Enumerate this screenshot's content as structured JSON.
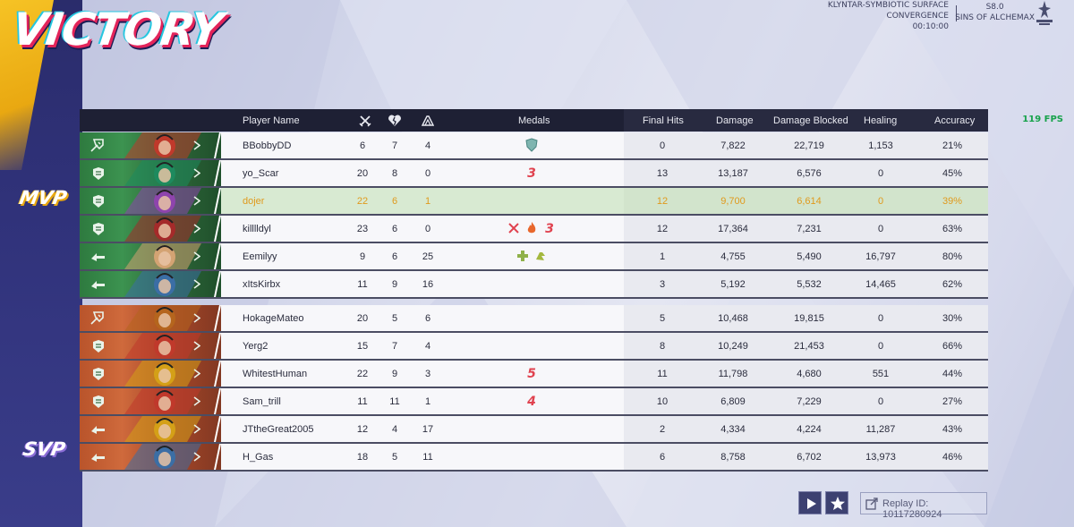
{
  "banner": {
    "title": "VICTORY"
  },
  "season": {
    "map_name": "KLYNTAR-SYMBIOTIC SURFACE",
    "mode": "CONVERGENCE",
    "time": "00:10:00",
    "season_code": "S8.0",
    "season_name": "SINS OF ALCHEMAX"
  },
  "fps": "119 FPS",
  "awards": {
    "mvp": "MVP",
    "svp": "SVP"
  },
  "columns": {
    "player_name": "Player Name",
    "medals": "Medals",
    "final_hits": "Final Hits",
    "damage": "Damage",
    "damage_blocked": "Damage Blocked",
    "healing": "Healing",
    "accuracy": "Accuracy",
    "kills_icon": "crossed-swords-icon",
    "deaths_icon": "broken-heart-icon",
    "assists_icon": "assist-hands-icon"
  },
  "team_a": [
    {
      "name": "BBobbyDD",
      "role": "vanguard",
      "kills": "6",
      "deaths": "7",
      "assists": "4",
      "medals": [
        "shield-medal-icon"
      ],
      "final_hits": "0",
      "damage": "7,822",
      "damage_blocked": "22,719",
      "healing": "1,153",
      "accuracy": "21%"
    },
    {
      "name": "yo_Scar",
      "role": "duelist",
      "kills": "20",
      "deaths": "8",
      "assists": "0",
      "medals": [
        "streak-3-medal-icon"
      ],
      "final_hits": "13",
      "damage": "13,187",
      "damage_blocked": "6,576",
      "healing": "0",
      "accuracy": "45%"
    },
    {
      "name": "dojer",
      "role": "duelist",
      "kills": "22",
      "deaths": "6",
      "assists": "1",
      "medals": [],
      "final_hits": "12",
      "damage": "9,700",
      "damage_blocked": "6,614",
      "healing": "0",
      "accuracy": "39%"
    },
    {
      "name": "killlldyl",
      "role": "duelist",
      "kills": "23",
      "deaths": "6",
      "assists": "0",
      "medals": [
        "swords-medal-icon",
        "fire-medal-icon",
        "streak-3-medal-icon"
      ],
      "final_hits": "12",
      "damage": "17,364",
      "damage_blocked": "7,231",
      "healing": "0",
      "accuracy": "63%"
    },
    {
      "name": "Eemilyy",
      "role": "strategist",
      "kills": "9",
      "deaths": "6",
      "assists": "25",
      "medals": [
        "heal-cross-medal-icon",
        "assist-medal-icon"
      ],
      "final_hits": "1",
      "damage": "4,755",
      "damage_blocked": "5,490",
      "healing": "16,797",
      "accuracy": "80%"
    },
    {
      "name": "xItsKirbx",
      "role": "strategist",
      "kills": "11",
      "deaths": "9",
      "assists": "16",
      "medals": [],
      "final_hits": "3",
      "damage": "5,192",
      "damage_blocked": "5,532",
      "healing": "14,465",
      "accuracy": "62%"
    }
  ],
  "team_b": [
    {
      "name": "HokageMateo",
      "role": "vanguard",
      "kills": "20",
      "deaths": "5",
      "assists": "6",
      "medals": [],
      "final_hits": "5",
      "damage": "10,468",
      "damage_blocked": "19,815",
      "healing": "0",
      "accuracy": "30%"
    },
    {
      "name": "Yerg2",
      "role": "duelist",
      "kills": "15",
      "deaths": "7",
      "assists": "4",
      "medals": [],
      "final_hits": "8",
      "damage": "10,249",
      "damage_blocked": "21,453",
      "healing": "0",
      "accuracy": "66%"
    },
    {
      "name": "WhitestHuman",
      "role": "duelist",
      "kills": "22",
      "deaths": "9",
      "assists": "3",
      "medals": [
        "streak-5-medal-icon"
      ],
      "final_hits": "11",
      "damage": "11,798",
      "damage_blocked": "4,680",
      "healing": "551",
      "accuracy": "44%"
    },
    {
      "name": "Sam_trill",
      "role": "duelist",
      "kills": "11",
      "deaths": "11",
      "assists": "1",
      "medals": [
        "streak-4-medal-icon"
      ],
      "final_hits": "10",
      "damage": "6,809",
      "damage_blocked": "7,229",
      "healing": "0",
      "accuracy": "27%"
    },
    {
      "name": "JTtheGreat2005",
      "role": "strategist",
      "kills": "12",
      "deaths": "4",
      "assists": "17",
      "medals": [],
      "final_hits": "2",
      "damage": "4,334",
      "damage_blocked": "4,224",
      "healing": "11,287",
      "accuracy": "43%"
    },
    {
      "name": "H_Gas",
      "role": "strategist",
      "kills": "18",
      "deaths": "5",
      "assists": "11",
      "medals": [],
      "final_hits": "6",
      "damage": "8,758",
      "damage_blocked": "6,702",
      "healing": "13,973",
      "accuracy": "46%"
    }
  ],
  "medal_text": {
    "streak_3": "3",
    "streak_4": "4",
    "streak_5": "5"
  },
  "footer": {
    "replay_label": "Replay ID: 10117280924",
    "play_icon": "play-icon",
    "favorite_icon": "star-icon",
    "share_icon": "share-icon"
  },
  "colors": {
    "team_a": "#2e7a3f",
    "team_b": "#b9542b",
    "mvp_highlight": "#e09a1c",
    "header_bg": "#1e2034",
    "fps": "#17a24b"
  }
}
